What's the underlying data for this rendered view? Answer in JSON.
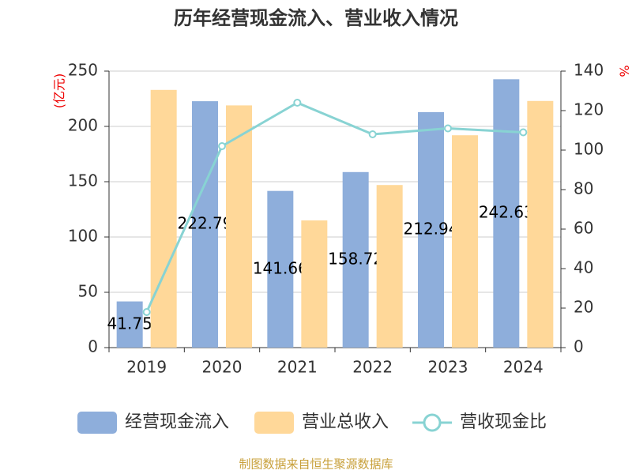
{
  "chart_data": {
    "type": "bar-line",
    "title": "历年经营现金流入、营业收入情况",
    "y_label": "(亿元)",
    "y2_label": "%",
    "source": "制图数据来自恒生聚源数据库",
    "categories": [
      "2019",
      "2020",
      "2021",
      "2022",
      "2023",
      "2024"
    ],
    "ylim": [
      0,
      250
    ],
    "yticks": [
      0,
      50,
      100,
      150,
      200,
      250
    ],
    "y2lim": [
      0,
      140
    ],
    "y2ticks": [
      0,
      20,
      40,
      60,
      80,
      100,
      120,
      140
    ],
    "grid": true,
    "series": [
      {
        "name": "经营现金流入",
        "type": "bar",
        "color": "#8eaedb",
        "show_labels": true,
        "values": [
          41.75,
          222.79,
          141.66,
          158.72,
          212.94,
          242.63
        ]
      },
      {
        "name": "营业总收入",
        "type": "bar",
        "color": "#ffd899",
        "values": [
          233,
          219,
          115,
          147,
          192,
          223
        ]
      },
      {
        "name": "营收现金比",
        "type": "line",
        "axis": "y2",
        "color": "#88d3d3",
        "values": [
          18,
          102,
          124,
          108,
          111,
          109
        ]
      }
    ]
  }
}
